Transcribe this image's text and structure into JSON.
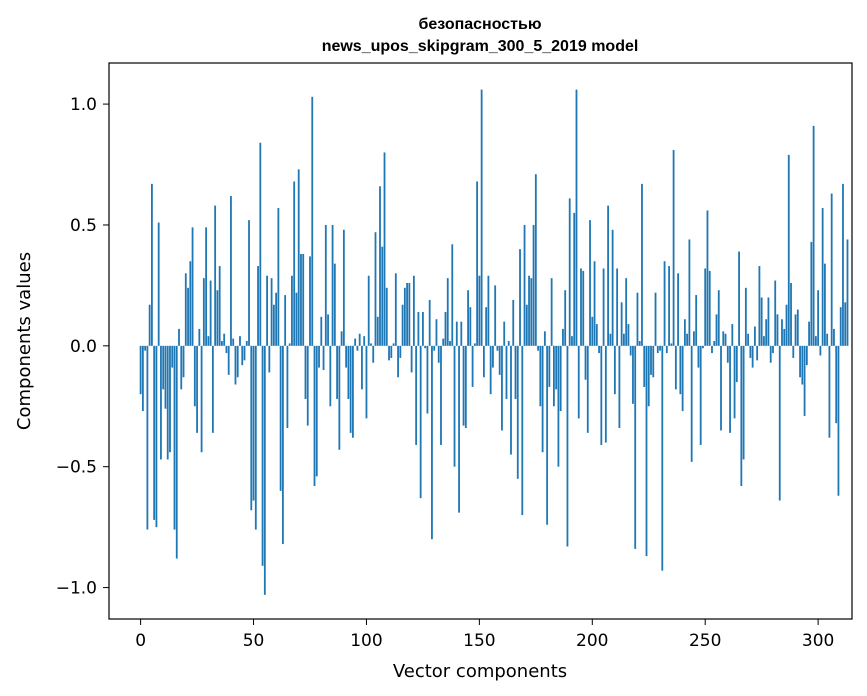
{
  "chart_data": {
    "type": "bar",
    "title_line1": "безопасностью",
    "title_line2": "news_upos_skipgram_300_5_2019 model",
    "xlabel": "Vector components",
    "ylabel": "Components values",
    "xlim": [
      -14,
      315
    ],
    "ylim": [
      -1.13,
      1.17
    ],
    "xticks": [
      0,
      50,
      100,
      150,
      200,
      250,
      300
    ],
    "xtick_labels": [
      "0",
      "50",
      "100",
      "150",
      "200",
      "250",
      "300"
    ],
    "yticks": [
      1.0,
      0.5,
      0.0,
      -0.5,
      -1.0
    ],
    "ytick_labels": [
      "1.0",
      "0.5",
      "0.0",
      "−0.5",
      "−1.0"
    ],
    "bar_color": "#1f77b4",
    "grid": false,
    "values": [
      -0.2,
      -0.27,
      -0.02,
      -0.76,
      0.17,
      0.67,
      -0.72,
      -0.75,
      0.51,
      -0.47,
      -0.18,
      -0.26,
      -0.47,
      -0.44,
      -0.09,
      -0.76,
      -0.88,
      0.07,
      -0.18,
      -0.13,
      0.3,
      0.24,
      0.35,
      0.49,
      -0.25,
      -0.36,
      0.07,
      -0.44,
      0.28,
      0.49,
      0.04,
      0.27,
      -0.36,
      0.58,
      0.23,
      0.33,
      0.02,
      0.05,
      -0.03,
      -0.12,
      0.62,
      0.03,
      -0.16,
      -0.13,
      0.04,
      -0.08,
      -0.06,
      0.02,
      0.52,
      -0.68,
      -0.64,
      -0.76,
      0.33,
      0.84,
      -0.91,
      -1.03,
      0.29,
      -0.11,
      0.28,
      0.17,
      0.22,
      0.57,
      -0.6,
      -0.82,
      0.21,
      -0.34,
      0.01,
      0.29,
      0.68,
      0.22,
      0.73,
      0.38,
      0.38,
      -0.22,
      -0.33,
      0.37,
      1.03,
      -0.58,
      -0.54,
      -0.09,
      0.12,
      -0.1,
      0.5,
      0.13,
      -0.25,
      0.5,
      0.34,
      -0.22,
      -0.43,
      0.06,
      0.48,
      -0.09,
      -0.22,
      -0.36,
      -0.38,
      0.03,
      -0.02,
      0.05,
      -0.18,
      0.04,
      -0.3,
      0.29,
      0.01,
      -0.07,
      0.47,
      0.12,
      0.66,
      0.41,
      0.8,
      0.24,
      -0.06,
      -0.05,
      0.01,
      0.3,
      -0.13,
      -0.05,
      0.17,
      0.24,
      0.26,
      0.26,
      -0.11,
      0.29,
      -0.41,
      0.14,
      -0.63,
      0.14,
      -0.01,
      -0.28,
      0.19,
      -0.8,
      -0.02,
      0.11,
      -0.07,
      -0.41,
      0.03,
      0.14,
      0.28,
      0.02,
      0.42,
      -0.5,
      0.1,
      -0.69,
      0.1,
      -0.33,
      -0.34,
      0.23,
      0.16,
      -0.17,
      0.01,
      0.68,
      0.29,
      1.06,
      -0.13,
      0.16,
      0.29,
      -0.2,
      -0.09,
      0.25,
      -0.02,
      -0.12,
      -0.35,
      0.1,
      -0.22,
      0.02,
      -0.45,
      0.19,
      -0.22,
      -0.55,
      0.4,
      -0.7,
      0.5,
      0.17,
      0.29,
      0.28,
      0.5,
      0.71,
      -0.02,
      -0.25,
      -0.44,
      0.06,
      -0.74,
      -0.17,
      0.28,
      -0.25,
      -0.18,
      -0.5,
      -0.27,
      0.07,
      0.23,
      -0.83,
      0.61,
      0.04,
      0.55,
      1.06,
      -0.3,
      0.32,
      0.31,
      -0.14,
      -0.36,
      0.52,
      0.12,
      0.35,
      0.09,
      -0.03,
      -0.41,
      0.32,
      -0.4,
      0.58,
      0.05,
      0.48,
      -0.2,
      0.32,
      -0.34,
      0.18,
      0.05,
      0.28,
      0.09,
      -0.04,
      -0.24,
      -0.84,
      0.22,
      0.02,
      0.67,
      -0.17,
      -0.87,
      -0.25,
      -0.12,
      -0.13,
      0.22,
      -0.03,
      -0.02,
      -0.93,
      0.35,
      -0.03,
      0.33,
      0.01,
      0.81,
      -0.18,
      0.3,
      -0.2,
      -0.27,
      0.11,
      0.05,
      0.44,
      -0.48,
      0.06,
      0.21,
      -0.09,
      -0.41,
      -0.01,
      0.32,
      0.56,
      0.31,
      -0.03,
      0.02,
      0.13,
      0.23,
      -0.35,
      0.06,
      0.05,
      -0.07,
      -0.36,
      0.09,
      -0.3,
      -0.15,
      0.39,
      -0.58,
      -0.47,
      0.24,
      0.05,
      -0.05,
      -0.09,
      0.08,
      -0.06,
      0.33,
      0.2,
      0.04,
      0.11,
      0.2,
      -0.07,
      -0.03,
      0.27,
      0.13,
      -0.64,
      0.11,
      0.07,
      0.17,
      0.79,
      0.26,
      -0.05,
      0.13,
      0.15,
      -0.13,
      -0.16,
      -0.29,
      -0.08,
      0.1,
      0.43,
      0.91,
      0.04,
      0.23,
      -0.04,
      0.57,
      0.34,
      0.05,
      -0.38,
      0.63,
      0.07,
      -0.32,
      -0.62,
      0.16,
      0.67,
      0.18,
      0.44
    ]
  }
}
